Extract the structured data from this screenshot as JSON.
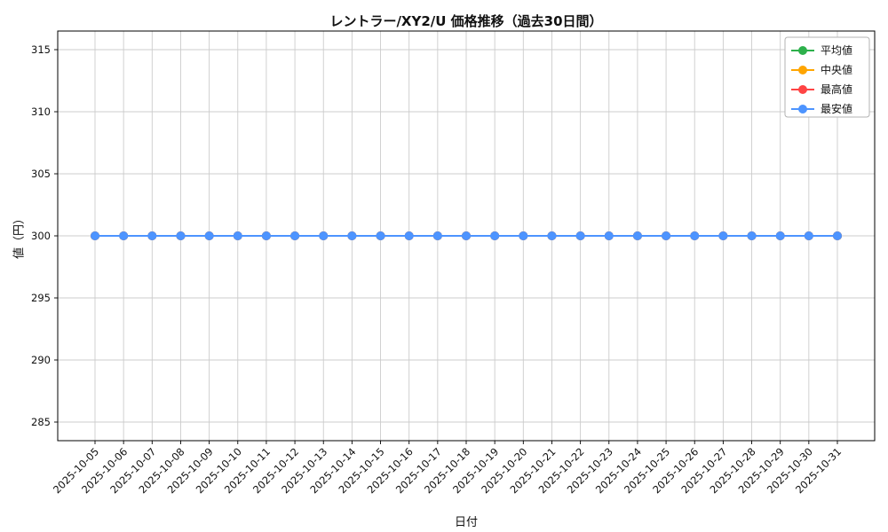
{
  "chart_data": {
    "type": "line",
    "title": "レントラー/XY2/U 価格推移（過去30日間）",
    "xlabel": "日付",
    "ylabel": "値（円）",
    "x": [
      "2025-10-05",
      "2025-10-06",
      "2025-10-07",
      "2025-10-08",
      "2025-10-09",
      "2025-10-10",
      "2025-10-11",
      "2025-10-12",
      "2025-10-13",
      "2025-10-14",
      "2025-10-15",
      "2025-10-16",
      "2025-10-17",
      "2025-10-18",
      "2025-10-19",
      "2025-10-20",
      "2025-10-21",
      "2025-10-22",
      "2025-10-23",
      "2025-10-24",
      "2025-10-25",
      "2025-10-26",
      "2025-10-27",
      "2025-10-28",
      "2025-10-29",
      "2025-10-30",
      "2025-10-31"
    ],
    "series": [
      {
        "name": "平均値",
        "color": "#2db04b",
        "values": [
          300,
          300,
          300,
          300,
          300,
          300,
          300,
          300,
          300,
          300,
          300,
          300,
          300,
          300,
          300,
          300,
          300,
          300,
          300,
          300,
          300,
          300,
          300,
          300,
          300,
          300,
          300
        ]
      },
      {
        "name": "中央値",
        "color": "#ffa500",
        "values": [
          300,
          300,
          300,
          300,
          300,
          300,
          300,
          300,
          300,
          300,
          300,
          300,
          300,
          300,
          300,
          300,
          300,
          300,
          300,
          300,
          300,
          300,
          300,
          300,
          300,
          300,
          300
        ]
      },
      {
        "name": "最高値",
        "color": "#ff4444",
        "values": [
          300,
          300,
          300,
          300,
          300,
          300,
          300,
          300,
          300,
          300,
          300,
          300,
          300,
          300,
          300,
          300,
          300,
          300,
          300,
          300,
          300,
          300,
          300,
          300,
          300,
          300,
          300
        ]
      },
      {
        "name": "最安値",
        "color": "#4d94ff",
        "values": [
          300,
          300,
          300,
          300,
          300,
          300,
          300,
          300,
          300,
          300,
          300,
          300,
          300,
          300,
          300,
          300,
          300,
          300,
          300,
          300,
          300,
          300,
          300,
          300,
          300,
          300,
          300
        ]
      }
    ],
    "ylim": [
      283.5,
      316.5
    ],
    "yticks": [
      285,
      290,
      295,
      300,
      305,
      310,
      315
    ],
    "grid": true,
    "legend_position": "upper right"
  },
  "style": {
    "grid_color": "#cccccc",
    "axis_color": "#000000",
    "legend_border_color": "#b3b3b3",
    "background": "#ffffff"
  }
}
